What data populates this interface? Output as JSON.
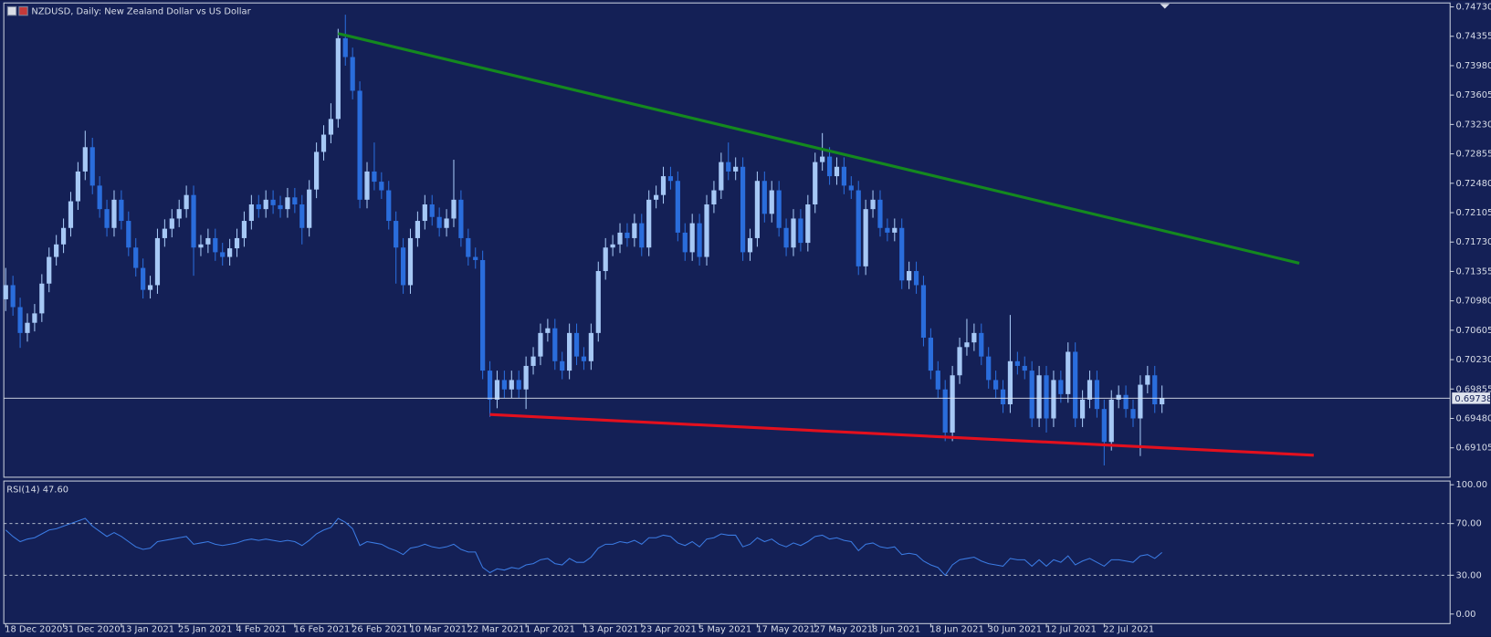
{
  "chart_data": [
    {
      "type": "candlestick",
      "title": "NZDUSD, Daily:  New Zealand Dollar vs US Dollar",
      "categories": [
        "18 Dec 2020",
        null,
        null,
        null,
        null,
        null,
        null,
        null,
        "31 Dec 2020",
        null,
        null,
        null,
        null,
        null,
        null,
        null,
        "13 Jan 2021",
        null,
        null,
        null,
        null,
        null,
        null,
        null,
        "25 Jan 2021",
        null,
        null,
        null,
        null,
        null,
        null,
        null,
        "4 Feb 2021",
        null,
        null,
        null,
        null,
        null,
        null,
        null,
        "16 Feb 2021",
        null,
        null,
        null,
        null,
        null,
        null,
        null,
        "26 Feb 2021",
        null,
        null,
        null,
        null,
        null,
        null,
        null,
        "10 Mar 2021",
        null,
        null,
        null,
        null,
        null,
        null,
        null,
        "22 Mar 2021",
        null,
        null,
        null,
        null,
        null,
        null,
        null,
        "1 Apr 2021",
        null,
        null,
        null,
        null,
        null,
        null,
        null,
        "13 Apr 2021",
        null,
        null,
        null,
        null,
        null,
        null,
        null,
        "23 Apr 2021",
        null,
        null,
        null,
        null,
        null,
        null,
        null,
        "5 May 2021",
        null,
        null,
        null,
        null,
        null,
        null,
        null,
        "17 May 2021",
        null,
        null,
        null,
        null,
        null,
        null,
        null,
        "27 May 2021",
        null,
        null,
        null,
        null,
        null,
        null,
        null,
        "8 Jun 2021",
        null,
        null,
        null,
        null,
        null,
        null,
        null,
        "18 Jun 2021",
        null,
        null,
        null,
        null,
        null,
        null,
        null,
        "30 Jun 2021",
        null,
        null,
        null,
        null,
        null,
        null,
        null,
        "12 Jul 2021",
        null,
        null,
        null,
        null,
        null,
        null,
        null,
        "22 Jul 2021",
        null,
        null,
        null,
        null,
        null,
        null,
        null,
        null
      ],
      "open": [
        0.71,
        0.7118,
        0.709,
        0.7057,
        0.707,
        0.7082,
        0.712,
        0.7154,
        0.717,
        0.7191,
        0.7225,
        0.7263,
        0.7294,
        0.7245,
        0.7215,
        0.7191,
        0.7227,
        0.72,
        0.7166,
        0.714,
        0.7112,
        0.7118,
        0.7178,
        0.719,
        0.7203,
        0.7215,
        0.7233,
        0.7166,
        0.717,
        0.7178,
        0.716,
        0.7154,
        0.7165,
        0.7178,
        0.72,
        0.7221,
        0.7215,
        0.7227,
        0.722,
        0.7215,
        0.723,
        0.7221,
        0.7191,
        0.724,
        0.7288,
        0.731,
        0.733,
        0.7433,
        0.7409,
        0.7366,
        0.7227,
        0.7263,
        0.725,
        0.7239,
        0.72,
        0.7166,
        0.7118,
        0.7178,
        0.72,
        0.7221,
        0.7205,
        0.7191,
        0.7203,
        0.7227,
        0.7178,
        0.7154,
        0.715,
        0.7009,
        0.6972,
        0.6997,
        0.6985,
        0.6997,
        0.6985,
        0.7015,
        0.7027,
        0.7057,
        0.7063,
        0.7021,
        0.7009,
        0.7057,
        0.7027,
        0.7021,
        0.7057,
        0.7136,
        0.7166,
        0.717,
        0.7185,
        0.7178,
        0.7197,
        0.7166,
        0.7227,
        0.7233,
        0.7257,
        0.7251,
        0.7185,
        0.716,
        0.7197,
        0.7154,
        0.7221,
        0.7239,
        0.7275,
        0.7263,
        0.7269,
        0.716,
        0.7178,
        0.7251,
        0.7209,
        0.7239,
        0.7191,
        0.7166,
        0.7203,
        0.7172,
        0.7221,
        0.7275,
        0.7282,
        0.7257,
        0.7269,
        0.7245,
        0.7239,
        0.7142,
        0.7215,
        0.7227,
        0.7191,
        0.7185,
        0.7191,
        0.7124,
        0.7136,
        0.7118,
        0.7051,
        0.7009,
        0.6985,
        0.693,
        0.7003,
        0.7039,
        0.7045,
        0.7057,
        0.7027,
        0.6997,
        0.6985,
        0.6966,
        0.7021,
        0.7015,
        0.7009,
        0.6948,
        0.7003,
        0.6948,
        0.6997,
        0.6979,
        0.7033,
        0.6948,
        0.6972,
        0.6997,
        0.696,
        0.6918,
        0.6972,
        0.6978,
        0.696,
        0.6948,
        0.6991,
        0.7003,
        0.6966
      ],
      "high": [
        0.714,
        0.713,
        0.7102,
        0.7082,
        0.7094,
        0.7132,
        0.7166,
        0.7182,
        0.7203,
        0.7237,
        0.7275,
        0.7315,
        0.7306,
        0.7257,
        0.7227,
        0.7239,
        0.7239,
        0.7212,
        0.7178,
        0.7152,
        0.713,
        0.719,
        0.7202,
        0.7215,
        0.7227,
        0.7245,
        0.7245,
        0.7182,
        0.719,
        0.719,
        0.7172,
        0.7177,
        0.719,
        0.7212,
        0.7233,
        0.7233,
        0.7239,
        0.7239,
        0.7232,
        0.7242,
        0.7242,
        0.7233,
        0.7252,
        0.73,
        0.7322,
        0.735,
        0.7445,
        0.7463,
        0.7421,
        0.7378,
        0.7275,
        0.73,
        0.7262,
        0.7251,
        0.7212,
        0.7178,
        0.719,
        0.7212,
        0.7233,
        0.7233,
        0.7217,
        0.7215,
        0.7278,
        0.7239,
        0.719,
        0.7166,
        0.7162,
        0.7021,
        0.7009,
        0.7009,
        0.7009,
        0.7009,
        0.7027,
        0.7039,
        0.7069,
        0.7075,
        0.7075,
        0.7033,
        0.7069,
        0.7069,
        0.7039,
        0.7069,
        0.7148,
        0.7178,
        0.7182,
        0.7197,
        0.7197,
        0.7209,
        0.7209,
        0.7239,
        0.7245,
        0.7269,
        0.7269,
        0.7263,
        0.7197,
        0.7209,
        0.7209,
        0.7233,
        0.7251,
        0.7287,
        0.73,
        0.7281,
        0.7281,
        0.719,
        0.7263,
        0.7263,
        0.7251,
        0.7251,
        0.7203,
        0.7215,
        0.7215,
        0.7233,
        0.7287,
        0.7312,
        0.7294,
        0.7281,
        0.7281,
        0.7257,
        0.7251,
        0.7227,
        0.7239,
        0.7239,
        0.7203,
        0.7203,
        0.7203,
        0.7148,
        0.7148,
        0.713,
        0.7063,
        0.7021,
        0.6997,
        0.7015,
        0.7051,
        0.7075,
        0.7069,
        0.7069,
        0.7039,
        0.7009,
        0.6997,
        0.708,
        0.7033,
        0.7027,
        0.7021,
        0.7015,
        0.7015,
        0.7009,
        0.7009,
        0.7045,
        0.7045,
        0.6984,
        0.7009,
        0.7009,
        0.6972,
        0.6984,
        0.699,
        0.699,
        0.6972,
        0.7003,
        0.7015,
        0.7015,
        0.699
      ],
      "low": [
        0.7085,
        0.7079,
        0.7038,
        0.7046,
        0.7059,
        0.7071,
        0.7109,
        0.7143,
        0.7159,
        0.718,
        0.7214,
        0.7252,
        0.7234,
        0.7204,
        0.718,
        0.718,
        0.7189,
        0.7155,
        0.7129,
        0.7101,
        0.7101,
        0.7107,
        0.7167,
        0.7179,
        0.7192,
        0.7204,
        0.713,
        0.7155,
        0.7159,
        0.7149,
        0.7143,
        0.7143,
        0.7154,
        0.7167,
        0.7189,
        0.7204,
        0.7204,
        0.7209,
        0.7204,
        0.7204,
        0.721,
        0.717,
        0.718,
        0.7229,
        0.7277,
        0.7299,
        0.7319,
        0.7398,
        0.7355,
        0.7216,
        0.7216,
        0.7239,
        0.7228,
        0.7189,
        0.712,
        0.7107,
        0.7107,
        0.7167,
        0.7189,
        0.7194,
        0.718,
        0.718,
        0.7192,
        0.7167,
        0.7143,
        0.7139,
        0.6998,
        0.695,
        0.6961,
        0.6974,
        0.6974,
        0.6974,
        0.696,
        0.7004,
        0.7016,
        0.7046,
        0.701,
        0.6998,
        0.6998,
        0.7016,
        0.701,
        0.701,
        0.7046,
        0.7125,
        0.7155,
        0.7159,
        0.7167,
        0.7167,
        0.7155,
        0.7155,
        0.7216,
        0.7222,
        0.724,
        0.7174,
        0.7149,
        0.7149,
        0.7143,
        0.7143,
        0.721,
        0.7228,
        0.7252,
        0.7252,
        0.7149,
        0.7149,
        0.7167,
        0.7198,
        0.7198,
        0.718,
        0.7155,
        0.7155,
        0.7161,
        0.7161,
        0.721,
        0.7264,
        0.7246,
        0.7246,
        0.7234,
        0.7228,
        0.7131,
        0.7131,
        0.7204,
        0.718,
        0.7174,
        0.7174,
        0.7113,
        0.7113,
        0.7107,
        0.704,
        0.6998,
        0.6974,
        0.6919,
        0.6919,
        0.6992,
        0.7028,
        0.7034,
        0.7016,
        0.6986,
        0.6974,
        0.6955,
        0.6955,
        0.7004,
        0.6998,
        0.6937,
        0.6937,
        0.693,
        0.6937,
        0.6968,
        0.6968,
        0.6937,
        0.6937,
        0.6961,
        0.6949,
        0.6888,
        0.6907,
        0.6961,
        0.6949,
        0.6937,
        0.69,
        0.698,
        0.6955,
        0.6955
      ],
      "close": [
        0.7118,
        0.709,
        0.7057,
        0.707,
        0.7082,
        0.712,
        0.7154,
        0.717,
        0.7191,
        0.7225,
        0.7263,
        0.7294,
        0.7245,
        0.7215,
        0.7191,
        0.7227,
        0.72,
        0.7166,
        0.714,
        0.7112,
        0.7118,
        0.7178,
        0.719,
        0.7203,
        0.7215,
        0.7233,
        0.7166,
        0.717,
        0.7178,
        0.716,
        0.7154,
        0.7165,
        0.7178,
        0.72,
        0.7221,
        0.7215,
        0.7227,
        0.722,
        0.7215,
        0.723,
        0.7221,
        0.7191,
        0.724,
        0.7288,
        0.731,
        0.733,
        0.7433,
        0.7409,
        0.7366,
        0.7227,
        0.7263,
        0.725,
        0.7239,
        0.72,
        0.7166,
        0.7118,
        0.7178,
        0.72,
        0.7221,
        0.7205,
        0.7191,
        0.7203,
        0.7227,
        0.7178,
        0.7154,
        0.715,
        0.7009,
        0.6972,
        0.6997,
        0.6985,
        0.6997,
        0.6985,
        0.7015,
        0.7027,
        0.7057,
        0.7063,
        0.7021,
        0.7009,
        0.7057,
        0.7027,
        0.7021,
        0.7057,
        0.7136,
        0.7166,
        0.717,
        0.7185,
        0.7178,
        0.7197,
        0.7166,
        0.7227,
        0.7233,
        0.7257,
        0.7251,
        0.7185,
        0.716,
        0.7197,
        0.7154,
        0.7221,
        0.7239,
        0.7275,
        0.7263,
        0.7269,
        0.716,
        0.7178,
        0.7251,
        0.7209,
        0.7239,
        0.7191,
        0.7166,
        0.7203,
        0.7172,
        0.7221,
        0.7275,
        0.7282,
        0.7257,
        0.7269,
        0.7245,
        0.7239,
        0.7142,
        0.7215,
        0.7227,
        0.7191,
        0.7185,
        0.7191,
        0.7124,
        0.7136,
        0.7118,
        0.7051,
        0.7009,
        0.6985,
        0.693,
        0.7003,
        0.7039,
        0.7045,
        0.7057,
        0.7027,
        0.6997,
        0.6985,
        0.6966,
        0.7021,
        0.7015,
        0.7009,
        0.6948,
        0.7003,
        0.6948,
        0.6997,
        0.6979,
        0.7033,
        0.6948,
        0.6972,
        0.6997,
        0.696,
        0.6918,
        0.6972,
        0.6978,
        0.696,
        0.6948,
        0.6991,
        0.7003,
        0.6966,
        0.69738
      ],
      "up_color": "#a6c8f5",
      "down_color": "#2a6ddc",
      "ylim": [
        0.6873,
        0.7478
      ],
      "yticks": [
        {
          "value": 0.7473,
          "label": "0.74730"
        },
        0.74355,
        {
          "value": 0.7398,
          "label": "0.73980"
        },
        0.73605,
        {
          "value": 0.7323,
          "label": "0.73230"
        },
        0.72855,
        {
          "value": 0.7248,
          "label": "0.72480"
        },
        0.72105,
        {
          "value": 0.7173,
          "label": "0.71730"
        },
        0.71355,
        {
          "value": 0.7098,
          "label": "0.70980"
        },
        0.70605,
        {
          "value": 0.7023,
          "label": "0.70230"
        },
        0.69855,
        {
          "value": 0.6948,
          "label": "0.69480"
        },
        0.69105
      ],
      "trendlines": [
        {
          "color": "#14891f",
          "x": [
            46,
            179
          ],
          "y": [
            0.7439,
            0.7146
          ]
        },
        {
          "color": "#e3101e",
          "x": [
            67,
            181
          ],
          "y": [
            0.6953,
            0.6901
          ]
        }
      ]
    },
    {
      "type": "line",
      "title": "RSI(14) 47.60",
      "values": [
        65,
        60,
        56,
        58,
        59,
        62,
        65,
        66,
        68,
        70,
        72,
        74,
        68,
        64,
        60,
        63,
        60,
        56,
        52,
        50,
        51,
        56,
        57,
        58,
        59,
        60,
        54,
        55,
        56,
        54,
        53,
        54,
        55,
        57,
        58,
        57,
        58,
        57,
        56,
        57,
        56,
        53,
        57,
        62,
        65,
        67,
        74,
        71,
        66,
        53,
        56,
        55,
        54,
        51,
        49,
        46,
        51,
        52,
        54,
        52,
        51,
        52,
        54,
        50,
        48,
        48,
        36,
        32,
        35,
        34,
        36,
        35,
        38,
        39,
        42,
        43,
        39,
        38,
        43,
        40,
        40,
        44,
        51,
        54,
        54,
        56,
        55,
        57,
        54,
        59,
        59,
        61,
        60,
        55,
        53,
        56,
        52,
        58,
        59,
        62,
        61,
        61,
        52,
        54,
        59,
        56,
        58,
        54,
        52,
        55,
        53,
        56,
        60,
        61,
        58,
        59,
        57,
        56,
        49,
        54,
        55,
        52,
        51,
        52,
        46,
        47,
        46,
        41,
        38,
        36,
        30,
        38,
        42,
        43,
        44,
        41,
        39,
        38,
        37,
        43,
        42,
        42,
        37,
        42,
        37,
        42,
        40,
        45,
        38,
        41,
        43,
        40,
        37,
        42,
        42,
        41,
        40,
        45,
        46,
        43,
        47.6
      ],
      "color": "#3b7be3",
      "ylim": [
        -7.4,
        102.9
      ],
      "yticks": [
        {
          "value": 100,
          "label": "100.00"
        },
        {
          "value": 70,
          "label": "70.00"
        },
        {
          "value": 30,
          "label": "30.00"
        },
        {
          "value": 0,
          "label": "0.00"
        }
      ]
    }
  ]
}
